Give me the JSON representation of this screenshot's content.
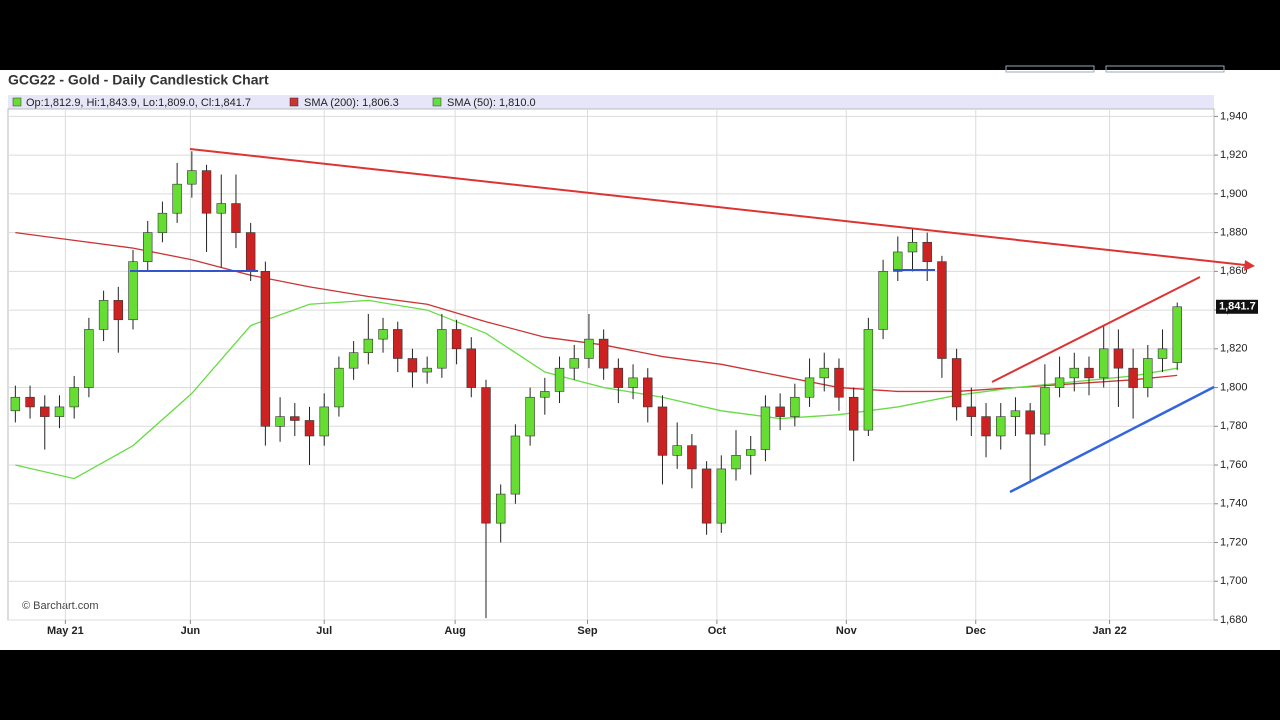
{
  "chart_data": {
    "type": "candlestick",
    "title": "GCG22 - Gold - Daily Candlestick Chart",
    "ohlc_legend": "Op:1,812.9, Hi:1,843.9, Lo:1,809.0, Cl:1,841.7",
    "watermark": "© Barchart.com",
    "price_label": "1,841.7",
    "up_color": "#66dd33",
    "down_color": "#cc2222",
    "open": [
      1788,
      1795,
      1790,
      1785,
      1790,
      1800,
      1830,
      1845,
      1835,
      1865,
      1880,
      1890,
      1905,
      1912,
      1890,
      1895,
      1880,
      1860,
      1780,
      1785,
      1783,
      1775,
      1790,
      1810,
      1818,
      1825,
      1830,
      1815,
      1808,
      1810,
      1830,
      1820,
      1800,
      1730,
      1745,
      1775,
      1795,
      1798,
      1810,
      1815,
      1825,
      1810,
      1800,
      1805,
      1790,
      1765,
      1770,
      1758,
      1730,
      1758,
      1765,
      1768,
      1790,
      1785,
      1795,
      1805,
      1810,
      1795,
      1778,
      1830,
      1860,
      1870,
      1875,
      1865,
      1815,
      1790,
      1785,
      1775,
      1785,
      1788,
      1776,
      1800,
      1805,
      1810,
      1805,
      1820,
      1810,
      1800,
      1815,
      1812.9
    ],
    "high": [
      1801,
      1801,
      1796,
      1796,
      1806,
      1836,
      1850,
      1852,
      1871,
      1886,
      1896,
      1916,
      1922,
      1915,
      1910,
      1910,
      1885,
      1865,
      1795,
      1792,
      1790,
      1797,
      1816,
      1824,
      1838,
      1836,
      1834,
      1820,
      1816,
      1838,
      1835,
      1826,
      1804,
      1750,
      1781,
      1800,
      1805,
      1816,
      1822,
      1838,
      1830,
      1815,
      1812,
      1810,
      1796,
      1782,
      1776,
      1762,
      1765,
      1778,
      1775,
      1796,
      1797,
      1802,
      1815,
      1818,
      1815,
      1800,
      1836,
      1866,
      1878,
      1882,
      1880,
      1868,
      1820,
      1800,
      1792,
      1792,
      1795,
      1792,
      1812,
      1816,
      1818,
      1816,
      1832,
      1830,
      1820,
      1822,
      1830,
      1843.9
    ],
    "low": [
      1782,
      1784,
      1768,
      1779,
      1784,
      1795,
      1824,
      1818,
      1830,
      1860,
      1875,
      1885,
      1898,
      1870,
      1862,
      1872,
      1855,
      1770,
      1772,
      1775,
      1760,
      1770,
      1785,
      1804,
      1812,
      1818,
      1808,
      1800,
      1802,
      1805,
      1812,
      1795,
      1681,
      1720,
      1740,
      1770,
      1786,
      1792,
      1804,
      1810,
      1804,
      1792,
      1794,
      1782,
      1750,
      1758,
      1748,
      1724,
      1725,
      1752,
      1755,
      1762,
      1778,
      1780,
      1790,
      1798,
      1788,
      1762,
      1775,
      1825,
      1855,
      1860,
      1855,
      1805,
      1783,
      1775,
      1764,
      1768,
      1775,
      1752,
      1770,
      1795,
      1798,
      1796,
      1800,
      1790,
      1784,
      1795,
      1808,
      1809.0
    ],
    "close": [
      1795,
      1790,
      1785,
      1790,
      1800,
      1830,
      1845,
      1835,
      1865,
      1880,
      1890,
      1905,
      1912,
      1890,
      1895,
      1880,
      1860,
      1780,
      1785,
      1783,
      1775,
      1790,
      1810,
      1818,
      1825,
      1830,
      1815,
      1808,
      1810,
      1830,
      1820,
      1800,
      1730,
      1745,
      1775,
      1795,
      1798,
      1810,
      1815,
      1825,
      1810,
      1800,
      1805,
      1790,
      1765,
      1770,
      1758,
      1730,
      1758,
      1765,
      1768,
      1790,
      1785,
      1795,
      1805,
      1810,
      1795,
      1778,
      1830,
      1860,
      1870,
      1875,
      1865,
      1815,
      1790,
      1785,
      1775,
      1785,
      1788,
      1776,
      1800,
      1805,
      1810,
      1805,
      1820,
      1810,
      1800,
      1815,
      1820,
      1841.7
    ],
    "series": [
      {
        "name": "SMA (200): 1,806.3",
        "color": "#cc3333",
        "x": [
          0,
          4,
          8,
          12,
          16,
          20,
          24,
          28,
          32,
          36,
          40,
          44,
          48,
          52,
          56,
          60,
          64,
          68,
          72,
          76,
          79
        ],
        "values": [
          1880,
          1876,
          1872,
          1866,
          1858,
          1852,
          1847,
          1843,
          1834,
          1826,
          1822,
          1816,
          1812,
          1806,
          1800,
          1798,
          1798,
          1800,
          1802,
          1804,
          1806.3
        ]
      },
      {
        "name": "SMA (50): 1,810.0",
        "color": "#66dd44",
        "x": [
          0,
          4,
          8,
          12,
          16,
          20,
          24,
          28,
          32,
          36,
          40,
          44,
          48,
          52,
          56,
          60,
          64,
          68,
          72,
          76,
          79
        ],
        "values": [
          1760,
          1753,
          1770,
          1797,
          1832,
          1843,
          1845,
          1840,
          1828,
          1808,
          1800,
          1795,
          1788,
          1784,
          1786,
          1790,
          1796,
          1800,
          1803,
          1806,
          1810.0
        ]
      }
    ],
    "xlim": [
      -0.5,
      81.5
    ],
    "xticks": [
      {
        "value": 3.4,
        "label": "May 21"
      },
      {
        "value": 11.9,
        "label": "Jun"
      },
      {
        "value": 21.0,
        "label": "Jul"
      },
      {
        "value": 29.9,
        "label": "Aug"
      },
      {
        "value": 38.9,
        "label": "Sep"
      },
      {
        "value": 47.7,
        "label": "Oct"
      },
      {
        "value": 56.5,
        "label": "Nov"
      },
      {
        "value": 65.3,
        "label": "Dec"
      },
      {
        "value": 74.4,
        "label": "Jan 22"
      }
    ],
    "ylim": [
      1680,
      1950
    ],
    "yticks": [
      {
        "value": 1680,
        "label": "1,680"
      },
      {
        "value": 1700,
        "label": "1,700"
      },
      {
        "value": 1720,
        "label": "1,720"
      },
      {
        "value": 1740,
        "label": "1,740"
      },
      {
        "value": 1760,
        "label": "1,760"
      },
      {
        "value": 1780,
        "label": "1,780"
      },
      {
        "value": 1800,
        "label": "1,800"
      },
      {
        "value": 1820,
        "label": "1,820"
      },
      {
        "value": 1840,
        "label": "1,840"
      },
      {
        "value": 1860,
        "label": "1,860"
      },
      {
        "value": 1880,
        "label": "1,880"
      },
      {
        "value": 1900,
        "label": "1,900"
      },
      {
        "value": 1920,
        "label": "1,920"
      },
      {
        "value": 1940,
        "label": "1,940"
      }
    ],
    "grid": true
  }
}
